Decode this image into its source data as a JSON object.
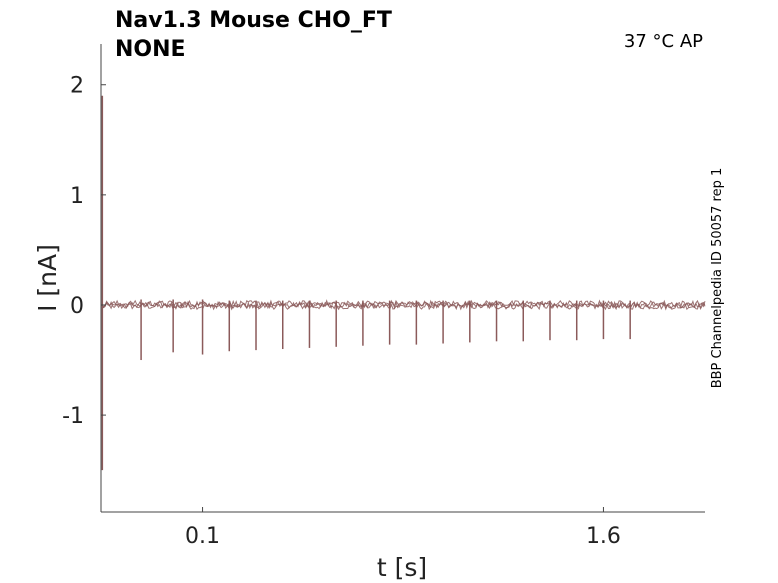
{
  "title_line1": "Nav1.3  Mouse  CHO_FT",
  "title_line2": "NONE",
  "conditions": "37 °C  AP",
  "side_label": "BBP Channelpedia ID 50057 rep 1",
  "trace_color": "#8b5a5a",
  "chart_data": {
    "type": "line",
    "xlabel": "t [s]",
    "ylabel": "I [nA]",
    "xlim": [
      -0.28,
      1.98
    ],
    "ylim": [
      -1.88,
      2.37
    ],
    "xticks": [
      0.1,
      1.6
    ],
    "xtick_labels": [
      "0.1",
      "1.6"
    ],
    "yticks": [
      -1,
      0,
      1,
      2
    ],
    "ytick_labels": [
      "-1",
      "0",
      "1",
      "2"
    ],
    "grid": false,
    "baseline": 0.0,
    "initial_transient": {
      "x": -0.275,
      "min": -1.5,
      "max": 1.9
    },
    "spike_times": [
      -0.13,
      -0.01,
      0.1,
      0.2,
      0.3,
      0.4,
      0.5,
      0.6,
      0.7,
      0.8,
      0.9,
      1.0,
      1.1,
      1.2,
      1.3,
      1.4,
      1.5,
      1.6,
      1.7
    ],
    "spike_min": [
      -0.5,
      -0.43,
      -0.45,
      -0.42,
      -0.41,
      -0.4,
      -0.39,
      -0.38,
      -0.37,
      -0.36,
      -0.36,
      -0.35,
      -0.34,
      -0.33,
      -0.33,
      -0.32,
      -0.32,
      -0.31,
      -0.31
    ],
    "spike_max": [
      0.05,
      0.05,
      0.05,
      0.04,
      0.04,
      0.04,
      0.04,
      0.04,
      0.04,
      0.04,
      0.04,
      0.04,
      0.04,
      0.04,
      0.04,
      0.04,
      0.04,
      0.04,
      0.04
    ],
    "noise_band": [
      -0.06,
      0.03
    ]
  }
}
